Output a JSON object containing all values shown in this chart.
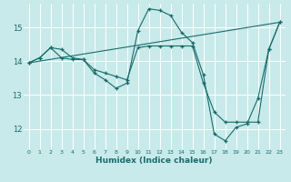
{
  "xlabel": "Humidex (Indice chaleur)",
  "bg_color": "#c8eaea",
  "grid_color": "#ffffff",
  "line_color": "#1a6b6b",
  "xlim": [
    -0.5,
    23.5
  ],
  "ylim": [
    11.4,
    15.7
  ],
  "yticks": [
    12,
    13,
    14,
    15
  ],
  "xticks": [
    0,
    1,
    2,
    3,
    4,
    5,
    6,
    7,
    8,
    9,
    10,
    11,
    12,
    13,
    14,
    15,
    16,
    17,
    18,
    19,
    20,
    21,
    22,
    23
  ],
  "line1_x": [
    0,
    1,
    2,
    3,
    4,
    5,
    6,
    7,
    8,
    9,
    10,
    11,
    12,
    13,
    14,
    15,
    16,
    17,
    18,
    19,
    20,
    21,
    22,
    23
  ],
  "line1_y": [
    13.95,
    14.1,
    14.4,
    14.35,
    14.1,
    14.05,
    13.65,
    13.45,
    13.2,
    13.35,
    14.9,
    15.55,
    15.5,
    15.35,
    14.85,
    14.55,
    13.6,
    11.85,
    11.65,
    12.05,
    12.15,
    12.9,
    14.35,
    15.15
  ],
  "line2_x": [
    0,
    1,
    2,
    3,
    4,
    5,
    6,
    7,
    8,
    9,
    10,
    11,
    12,
    13,
    14,
    15,
    16,
    17,
    18,
    19,
    20,
    21,
    22,
    23
  ],
  "line2_y": [
    13.95,
    14.1,
    14.4,
    14.1,
    14.05,
    14.05,
    13.75,
    13.65,
    13.55,
    13.45,
    14.4,
    14.45,
    14.45,
    14.45,
    14.45,
    14.45,
    13.35,
    12.5,
    12.2,
    12.2,
    12.2,
    12.2,
    14.35,
    15.15
  ],
  "line3_x": [
    0,
    23
  ],
  "line3_y": [
    13.95,
    15.15
  ]
}
